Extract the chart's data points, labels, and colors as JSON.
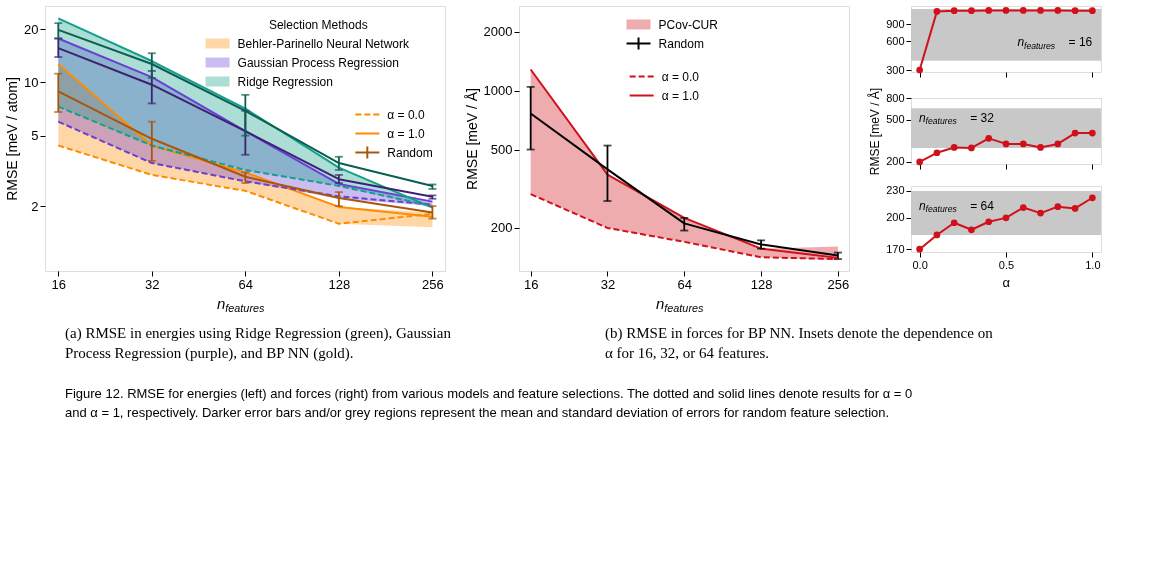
{
  "chart_data": [
    {
      "type": "line",
      "xlabel": "n$_{features}$",
      "ylabel": "RMSE [meV / atom]",
      "log": "xy",
      "xlim": [
        14.5,
        281
      ],
      "xticks": [
        16,
        32,
        64,
        128,
        256
      ],
      "ylim": [
        0.86,
        27
      ],
      "yticks": [
        2,
        5,
        10,
        20
      ],
      "legend": "top right",
      "legend_title": "Selection Methods",
      "x": [
        16,
        32,
        64,
        128,
        256
      ],
      "annotations": [
        "α = 1.0"
      ],
      "series": [
        {
          "name": "Behler-Parinello Neural Network",
          "color": "#ff8c00",
          "values": [
            12.7,
            4.4,
            3.1,
            1.98,
            1.74
          ],
          "lower": [
            4.4,
            3.0,
            2.44,
            1.59,
            1.52
          ],
          "upper": [
            12.7,
            4.4,
            3.1,
            1.98,
            1.84
          ]
        },
        {
          "name": "Gaussian Process Regression",
          "color": "#6a3fd6",
          "values": [
            17.7,
            10.7,
            5.3,
            2.67,
            2.12
          ],
          "lower": [
            6.0,
            3.5,
            2.76,
            2.2,
            2.0
          ],
          "upper": [
            17.7,
            10.7,
            5.3,
            2.67,
            2.12
          ]
        },
        {
          "name": "Ridge Regression",
          "color": "#14a08a",
          "values": [
            23.0,
            13.2,
            7.1,
            3.3,
            1.96
          ],
          "lower": [
            7.3,
            4.4,
            3.2,
            2.6,
            1.96
          ],
          "upper": [
            23.0,
            13.2,
            7.1,
            3.3,
            2.0
          ]
        },
        {
          "name": "α = 0.0",
          "color": "#ff8c00",
          "line_style": "dashed",
          "values": [
            4.4,
            3.0,
            2.44,
            1.59,
            1.81
          ]
        },
        {
          "color": "#6a3fd6",
          "line_style": "dashed",
          "values": [
            6.0,
            3.5,
            2.76,
            2.27,
            2.04
          ]
        },
        {
          "color": "#14a08a",
          "line_style": "dashed",
          "values": [
            7.3,
            4.4,
            3.2,
            2.6,
            2.0
          ]
        },
        {
          "name": "Random",
          "color": "#a8560c",
          "values": [
            8.9,
            4.8,
            2.93,
            2.22,
            1.84
          ],
          "errors": [
            [
              6.8,
              11.2
            ],
            [
              3.6,
              6.0
            ],
            [
              2.7,
              3.1
            ],
            [
              2.0,
              2.4
            ],
            [
              1.7,
              2.0
            ]
          ]
        },
        {
          "color": "#3d2272",
          "values": [
            15.6,
            9.7,
            5.3,
            2.84,
            2.26
          ],
          "errors": [
            [
              13.9,
              17.7
            ],
            [
              7.6,
              11.6
            ],
            [
              3.9,
              6.9
            ],
            [
              2.7,
              3.0
            ],
            [
              2.2,
              2.3
            ]
          ]
        },
        {
          "color": "#0b5e52",
          "values": [
            19.8,
            12.7,
            6.9,
            3.5,
            2.6
          ],
          "errors": [
            [
              17.7,
              21.6
            ],
            [
              10.6,
              14.6
            ],
            [
              5.0,
              8.5
            ],
            [
              3.2,
              3.8
            ],
            [
              2.5,
              2.65
            ]
          ]
        }
      ]
    },
    {
      "type": "line",
      "xlabel": "n$_{features}$",
      "ylabel": "RMSE [meV / Å]",
      "log": "xy",
      "xlim": [
        14.4,
        283
      ],
      "xticks": [
        16,
        32,
        64,
        128,
        256
      ],
      "ylim": [
        120,
        2700
      ],
      "yticks": [
        200,
        500,
        1000,
        2000
      ],
      "legend": "top",
      "x": [
        16,
        32,
        64,
        128,
        256
      ],
      "annotations": [
        "α = 1.0"
      ],
      "series": [
        {
          "name": "PCov-CUR",
          "color": "#d0101b",
          "values": [
            1280,
            372,
            224,
            156,
            140
          ],
          "lower": [
            296,
            199,
            169,
            141,
            136
          ],
          "upper": [
            1280,
            372,
            224,
            156,
            160
          ]
        },
        {
          "name": "Random",
          "color": "#000000",
          "values": [
            764,
            396,
            210,
            164,
            144
          ],
          "errors": [
            [
              500,
              1044
            ],
            [
              273,
              524
            ],
            [
              193,
              224
            ],
            [
              156,
              172
            ],
            [
              138,
              149
            ]
          ]
        },
        {
          "name": "α = 0.0",
          "color": "#d0101b",
          "line_style": "dashed",
          "values": [
            296,
            199,
            169,
            141,
            138
          ]
        }
      ]
    },
    {
      "type": "line",
      "x": [
        0,
        0.1,
        0.2,
        0.3,
        0.4,
        0.5,
        0.6,
        0.7,
        0.8,
        0.9,
        1.0
      ],
      "xlim": [
        -0.05,
        1.05
      ],
      "xticks": [
        0,
        0.5,
        1
      ],
      "log": "y",
      "ylim": [
        286,
        1400
      ],
      "yticks": [
        300,
        600,
        900
      ],
      "tick_labels": "y",
      "marker": "circle",
      "bands": [
        {
          "axis": "y",
          "from": 375,
          "to": 1300,
          "color": "#c8c8c8"
        }
      ],
      "annotations": [
        "n$_{features}$ = 16"
      ],
      "series": [
        {
          "color": "#d0101b",
          "values": [
            300,
            1230,
            1250,
            1250,
            1260,
            1260,
            1260,
            1260,
            1260,
            1250,
            1250
          ]
        }
      ]
    },
    {
      "type": "line",
      "ylabel": "RMSE [meV / Å]",
      "x": [
        0,
        0.1,
        0.2,
        0.3,
        0.4,
        0.5,
        0.6,
        0.7,
        0.8,
        0.9,
        1.0
      ],
      "xlim": [
        -0.05,
        1.05
      ],
      "xticks": [
        0,
        0.5,
        1
      ],
      "log": "y",
      "ylim": [
        191,
        805
      ],
      "yticks": [
        200,
        500,
        800
      ],
      "tick_labels": "y",
      "marker": "circle",
      "bands": [
        {
          "axis": "y",
          "from": 271,
          "to": 644,
          "color": "#c8c8c8"
        }
      ],
      "annotations": [
        "n$_{features}$ = 32"
      ],
      "series": [
        {
          "color": "#d0101b",
          "values": [
            200,
            244,
            274,
            271,
            334,
            296,
            296,
            274,
            296,
            375,
            375
          ]
        }
      ]
    },
    {
      "type": "line",
      "xlabel": "α",
      "x": [
        0,
        0.1,
        0.2,
        0.3,
        0.4,
        0.5,
        0.6,
        0.7,
        0.8,
        0.9,
        1.0
      ],
      "xlim": [
        -0.05,
        1.05
      ],
      "xticks": [
        {
          "value": 0,
          "label": "0.0"
        },
        {
          "value": 0.5,
          "label": "0.5"
        },
        {
          "value": 1,
          "label": "1.0"
        }
      ],
      "log": "y",
      "ylim": [
        167.5,
        236
      ],
      "yticks": [
        170,
        200,
        230
      ],
      "marker": "circle",
      "bands": [
        {
          "axis": "y",
          "from": 183,
          "to": 230,
          "color": "#c8c8c8"
        }
      ],
      "annotations": [
        "n$_{features}$ = 64"
      ],
      "series": [
        {
          "color": "#d0101b",
          "values": [
            170,
            183,
            195,
            188,
            196,
            200,
            211,
            205,
            212,
            210,
            222
          ]
        }
      ]
    },
    {
      "type": "other",
      "annotations": [
        "(a) RMSE in energies using Ridge Regression (green), Gaussian Process Regression (purple), and BP NN (gold).",
        "(b) RMSE in forces for BP NN. Insets denote the dependence on α for 16, 32, or 64 features.",
        "Figure 12. RMSE for energies (left) and forces (right) from various models and feature selections. The dotted and solid lines denote results for α = 0 and α = 1, respectively. Darker error bars and/or grey regions represent the mean and standard deviation of errors for random feature selection."
      ]
    }
  ]
}
